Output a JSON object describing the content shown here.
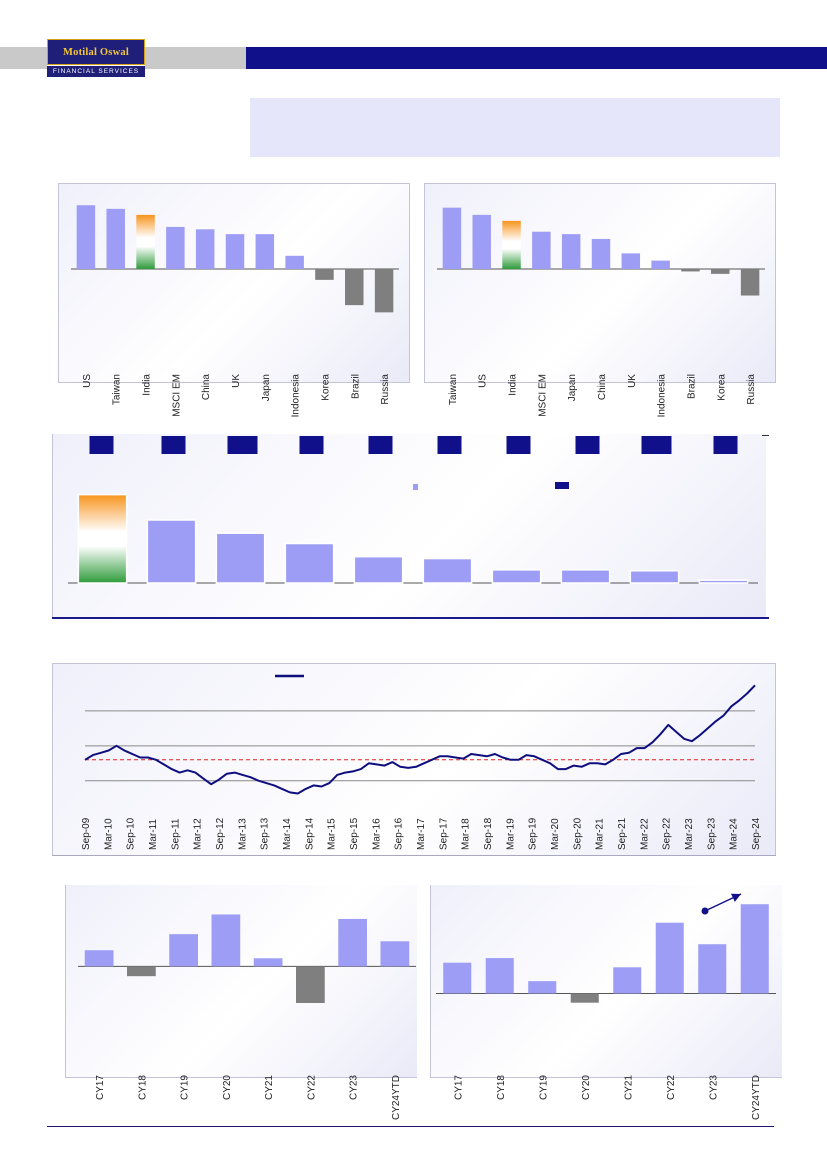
{
  "header": {
    "brand": "Motilal Oswal",
    "brand_sub": "FINANCIAL SERVICES"
  },
  "colors": {
    "bar_primary": "#9d9df5",
    "bar_negative": "#7f7f7f",
    "india_saffron": "#f7941d",
    "india_green": "#2e9b3a",
    "navy": "#10108a",
    "line": "#0e0e7e",
    "avg_line": "#e02020"
  },
  "chart_data": [
    {
      "type": "bar",
      "categories": [
        "US",
        "Taiwan",
        "India",
        "MSCI EM",
        "China",
        "UK",
        "Japan",
        "Indonesia",
        "Korea",
        "Brazil",
        "Russia"
      ],
      "values": [
        26.5,
        25,
        22.5,
        17.5,
        16.5,
        14.5,
        14.5,
        5.5,
        -4.5,
        -15,
        -18
      ],
      "highlight": "India",
      "ylim": [
        -22,
        32
      ]
    },
    {
      "type": "bar",
      "categories": [
        "Taiwan",
        "US",
        "India",
        "MSCI EM",
        "Japan",
        "China",
        "UK",
        "Indonesia",
        "Brazil",
        "Korea",
        "Russia"
      ],
      "values": [
        25.5,
        22.5,
        20,
        15.5,
        14.5,
        12.5,
        6.5,
        3.5,
        -1,
        -2,
        -11
      ],
      "highlight": "India",
      "ylim": [
        -22,
        32
      ]
    },
    {
      "type": "bar",
      "categories": [
        "",
        "",
        "",
        "",
        "",
        "",
        "",
        "",
        "",
        ""
      ],
      "values": [
        94,
        67,
        53,
        42,
        28,
        26,
        14,
        14,
        13,
        3
      ],
      "highlight_index": 0,
      "ylim": [
        0,
        100
      ]
    },
    {
      "type": "line",
      "x_ticks": [
        "Sep-09",
        "Mar-10",
        "Sep-10",
        "Mar-11",
        "Sep-11",
        "Mar-12",
        "Sep-12",
        "Mar-13",
        "Sep-13",
        "Mar-14",
        "Sep-14",
        "Mar-15",
        "Sep-15",
        "Mar-16",
        "Sep-16",
        "Mar-17",
        "Sep-17",
        "Mar-18",
        "Sep-18",
        "Mar-19",
        "Sep-19",
        "Mar-20",
        "Sep-20",
        "Mar-21",
        "Sep-21",
        "Mar-22",
        "Sep-22",
        "Mar-23",
        "Sep-23",
        "Mar-24",
        "Sep-24"
      ],
      "values": [
        58,
        62,
        64,
        66,
        70,
        66,
        63,
        60,
        60,
        58,
        54,
        50,
        47,
        49,
        47,
        42,
        37,
        41,
        46,
        47,
        45,
        43,
        40,
        38,
        36,
        33,
        30,
        29,
        33,
        36,
        35,
        38,
        45,
        47,
        48,
        50,
        55,
        54,
        53,
        56,
        52,
        51,
        52,
        55,
        58,
        61,
        61,
        60,
        59,
        63,
        62,
        61,
        63,
        60,
        58,
        58,
        62,
        61,
        58,
        55,
        50,
        50,
        53,
        52,
        55,
        55,
        54,
        58,
        63,
        64,
        68,
        68,
        73,
        80,
        88,
        82,
        76,
        74,
        79,
        85,
        91,
        96,
        104,
        109,
        115,
        122
      ],
      "mean": 58,
      "ylim": [
        20,
        130
      ],
      "gridlines": [
        40,
        70,
        100
      ]
    },
    {
      "type": "bar",
      "categories": [
        "CY17",
        "CY18",
        "CY19",
        "CY20",
        "CY21",
        "CY22",
        "CY23",
        "CY24YTD"
      ],
      "values": [
        9,
        -5.5,
        18,
        29,
        4.5,
        -20.5,
        26.5,
        14
      ],
      "ylim": [
        -30,
        41
      ]
    },
    {
      "type": "bar",
      "categories": [
        "CY17",
        "CY18",
        "CY19",
        "CY20",
        "CY21",
        "CY22",
        "CY23",
        "CY24YTD"
      ],
      "values": [
        10,
        11.5,
        4,
        -3,
        8.5,
        23,
        16,
        29
      ],
      "ylim": [
        -7,
        32
      ]
    }
  ]
}
